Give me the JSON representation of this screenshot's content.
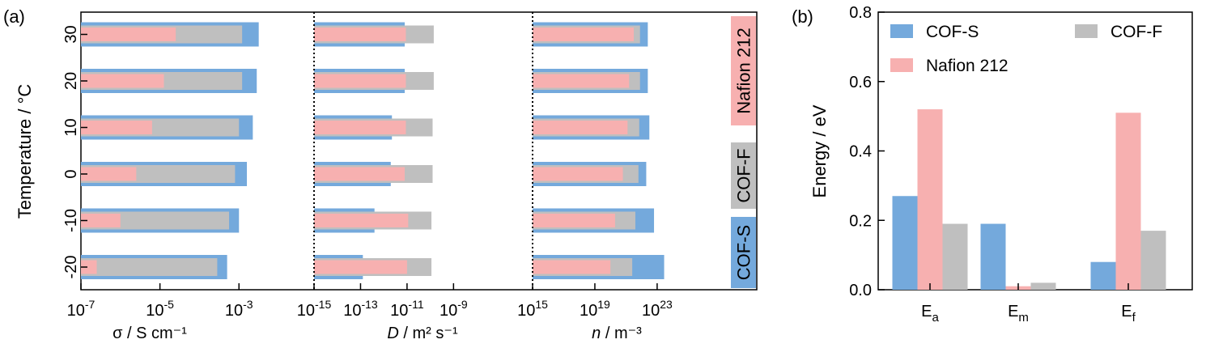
{
  "panel_a": {
    "label": "(a)",
    "ylabel": "Temperature / °C",
    "categories": [
      "-20",
      "-10",
      "0",
      "10",
      "20",
      "30"
    ],
    "colors": {
      "COF-S": "#74a9dc",
      "COF-F": "#bfbfbf",
      "Nafion 212": "#f7b0b0"
    },
    "vertical_labels": [
      "COF-S",
      "COF-F",
      "Nafion 212"
    ],
    "chart_data": [
      {
        "type": "bar",
        "orientation": "horizontal",
        "xscale": "log",
        "xlim_exp": [
          -7,
          -1.1
        ],
        "xlabel": "σ / S cm⁻¹",
        "ticks": [
          {
            "base": "10",
            "exp": "-7",
            "value": -7
          },
          {
            "base": "10",
            "exp": "-5",
            "value": -5
          },
          {
            "base": "10",
            "exp": "-3",
            "value": -3
          }
        ],
        "categories": [
          "-20",
          "-10",
          "0",
          "10",
          "20",
          "30"
        ],
        "series": [
          {
            "name": "COF-S",
            "log_values": [
              -3.3,
              -3.0,
              -2.8,
              -2.65,
              -2.55,
              -2.5
            ]
          },
          {
            "name": "COF-F",
            "log_values": [
              -3.55,
              -3.25,
              -3.1,
              -3.0,
              -2.92,
              -2.92
            ]
          },
          {
            "name": "Nafion 212",
            "log_values": [
              -6.6,
              -6.0,
              -5.6,
              -5.2,
              -4.9,
              -4.6
            ]
          }
        ]
      },
      {
        "type": "bar",
        "orientation": "horizontal",
        "xscale": "log",
        "xlim_exp": [
          -15,
          -5.6
        ],
        "xlabel": "D / m² s⁻¹",
        "xlabel_italic": "D",
        "xlabel_rest": " / m² s⁻¹",
        "ticks": [
          {
            "base": "10",
            "exp": "-15",
            "value": -15
          },
          {
            "base": "10",
            "exp": "-13",
            "value": -13
          },
          {
            "base": "10",
            "exp": "-11",
            "value": -11
          },
          {
            "base": "10",
            "exp": "-9",
            "value": -9
          }
        ],
        "categories": [
          "-20",
          "-10",
          "0",
          "10",
          "20",
          "30"
        ],
        "series": [
          {
            "name": "COF-S",
            "log_values": [
              -12.9,
              -12.4,
              -11.7,
              -11.65,
              -11.1,
              -11.1
            ]
          },
          {
            "name": "COF-F",
            "log_values": [
              -9.95,
              -9.95,
              -9.9,
              -9.9,
              -9.85,
              -9.85
            ]
          },
          {
            "name": "Nafion 212",
            "log_values": [
              -11.0,
              -10.95,
              -11.1,
              -11.05,
              -11.05,
              -11.05
            ]
          }
        ]
      },
      {
        "type": "bar",
        "orientation": "horizontal",
        "xscale": "log",
        "xlim_exp": [
          15,
          29.4
        ],
        "xlabel": "n / m⁻³",
        "xlabel_italic": "n",
        "xlabel_rest": " / m⁻³",
        "ticks": [
          {
            "base": "10",
            "exp": "15",
            "value": 15
          },
          {
            "base": "10",
            "exp": "19",
            "value": 19
          },
          {
            "base": "10",
            "exp": "23",
            "value": 23
          }
        ],
        "categories": [
          "-20",
          "-10",
          "0",
          "10",
          "20",
          "30"
        ],
        "series": [
          {
            "name": "COF-S",
            "log_values": [
              23.45,
              22.8,
              22.3,
              22.5,
              22.4,
              22.4
            ]
          },
          {
            "name": "COF-F",
            "log_values": [
              21.4,
              21.6,
              21.8,
              21.85,
              21.9,
              21.9
            ]
          },
          {
            "name": "Nafion 212",
            "log_values": [
              20.0,
              20.3,
              20.8,
              21.1,
              21.2,
              21.5
            ]
          }
        ]
      }
    ]
  },
  "panel_b": {
    "label": "(b)",
    "chart_data": {
      "type": "bar",
      "ylabel": "Energy / eV",
      "ylim": [
        0,
        0.8
      ],
      "yticks": [
        "0.0",
        "0.2",
        "0.4",
        "0.6",
        "0.8"
      ],
      "categories": [
        {
          "base": "E",
          "sub": "a"
        },
        {
          "base": "E",
          "sub": "m"
        },
        {
          "base": "E",
          "sub": "f"
        }
      ],
      "series": [
        {
          "name": "COF-S",
          "color": "#74a9dc",
          "values": [
            0.27,
            0.19,
            0.08
          ]
        },
        {
          "name": "Nafion 212",
          "color": "#f7b0b0",
          "values": [
            0.52,
            0.01,
            0.51
          ]
        },
        {
          "name": "COF-F",
          "color": "#bfbfbf",
          "values": [
            0.19,
            0.02,
            0.17
          ]
        }
      ],
      "legend": [
        "COF-S",
        "COF-F",
        "Nafion 212"
      ]
    }
  }
}
